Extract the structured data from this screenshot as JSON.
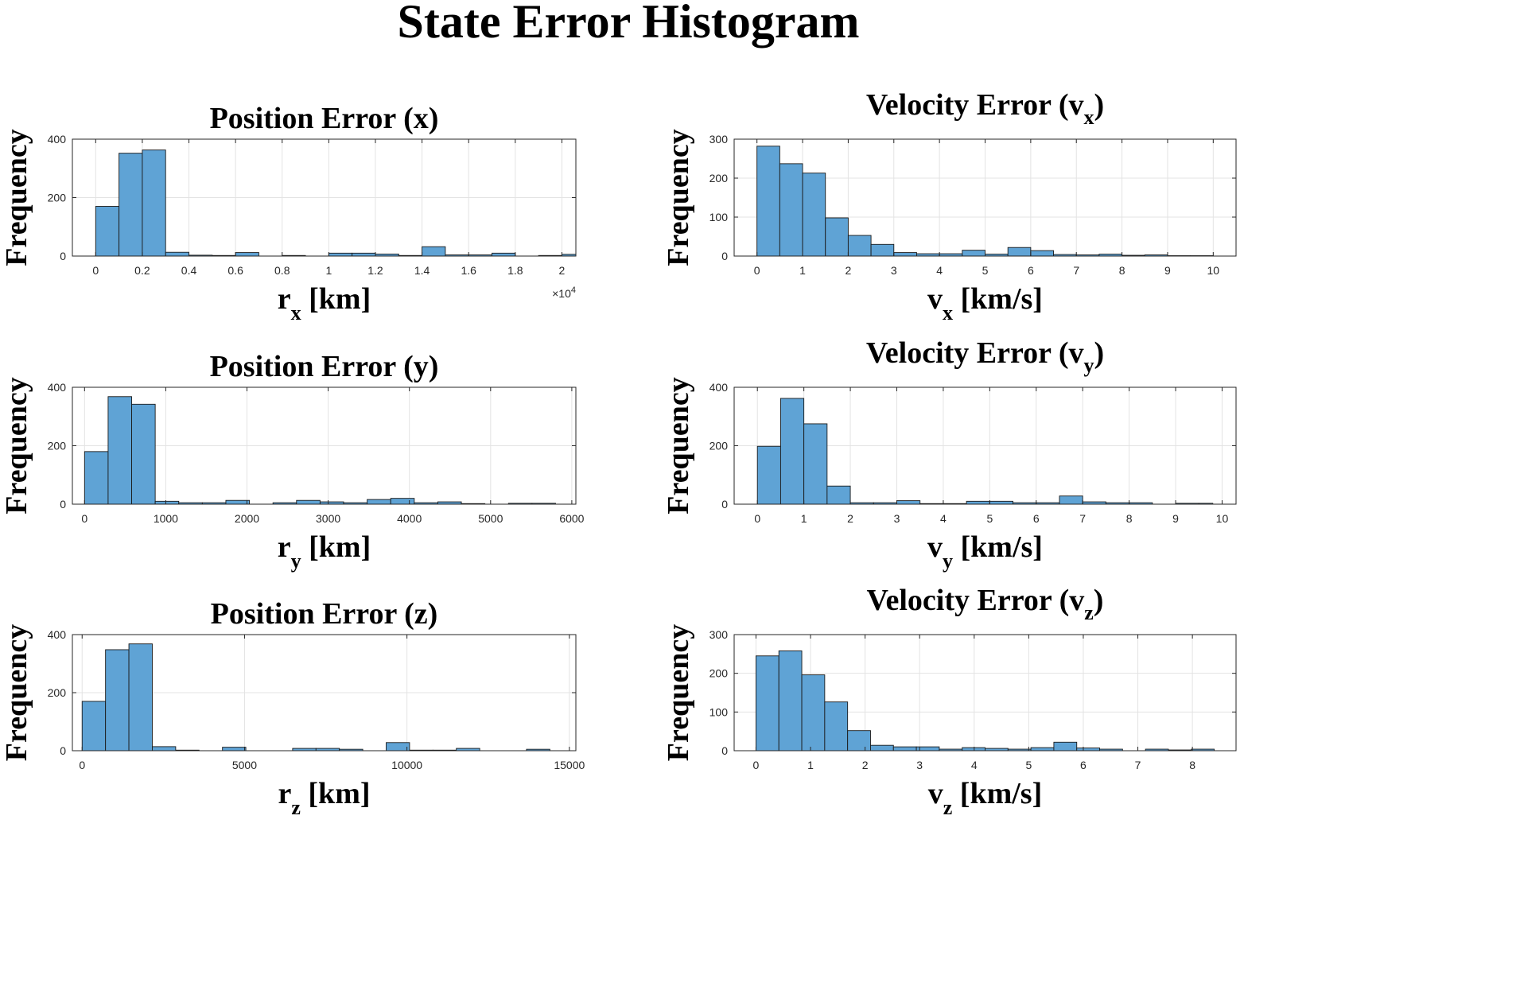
{
  "figure": {
    "title": "State Error Histogram"
  },
  "chart_data": [
    {
      "type": "bar",
      "title": "Position Error (x)",
      "xlabel": "r",
      "xlabel_sub": "x",
      "xlabel_unit": "[km]",
      "ylabel": "Frequency",
      "exponent_label": "×10",
      "exponent_power": "4",
      "xlim": [
        -0.1,
        2.06
      ],
      "ylim": [
        0,
        400
      ],
      "xticks": [
        0,
        0.2,
        0.4,
        0.6,
        0.8,
        1,
        1.2,
        1.4,
        1.6,
        1.8,
        2
      ],
      "xtick_labels": [
        "0",
        "0.2",
        "0.4",
        "0.6",
        "0.8",
        "1",
        "1.2",
        "1.4",
        "1.6",
        "1.8",
        "2"
      ],
      "yticks": [
        0,
        200,
        400
      ],
      "bin_edges": [
        0,
        0.1,
        0.2,
        0.3,
        0.4,
        0.5,
        0.6,
        0.7,
        0.8,
        0.9,
        1.0,
        1.1,
        1.2,
        1.3,
        1.4,
        1.5,
        1.6,
        1.7,
        1.8,
        1.9,
        2.0,
        2.06
      ],
      "values": [
        170,
        352,
        363,
        13,
        3,
        2,
        12,
        0,
        2,
        0,
        10,
        10,
        7,
        2,
        32,
        4,
        4,
        10,
        0,
        2,
        6
      ],
      "grid": true
    },
    {
      "type": "bar",
      "title": "Velocity Error (v",
      "title_sub": "x",
      "title_end": ")",
      "xlabel": "v",
      "xlabel_sub": "x",
      "xlabel_unit": "[km/s]",
      "ylabel": "Frequency",
      "xlim": [
        -0.5,
        10.5
      ],
      "ylim": [
        0,
        300
      ],
      "xticks": [
        0,
        1,
        2,
        3,
        4,
        5,
        6,
        7,
        8,
        9,
        10
      ],
      "xtick_labels": [
        "0",
        "1",
        "2",
        "3",
        "4",
        "5",
        "6",
        "7",
        "8",
        "9",
        "10"
      ],
      "yticks": [
        0,
        100,
        200,
        300
      ],
      "bin_edges": [
        0,
        0.5,
        1.0,
        1.5,
        2.0,
        2.5,
        3.0,
        3.5,
        4.0,
        4.5,
        5.0,
        5.5,
        6.0,
        6.5,
        7.0,
        7.5,
        8.0,
        8.5,
        9.0,
        9.5,
        10.0
      ],
      "values": [
        282,
        237,
        213,
        98,
        53,
        30,
        9,
        6,
        6,
        15,
        5,
        22,
        14,
        4,
        3,
        5,
        2,
        3,
        1,
        1
      ],
      "grid": true
    },
    {
      "type": "bar",
      "title": "Position Error (y)",
      "xlabel": "r",
      "xlabel_sub": "y",
      "xlabel_unit": "[km]",
      "ylabel": "Frequency",
      "xlim": [
        -150,
        6050
      ],
      "ylim": [
        0,
        400
      ],
      "xticks": [
        0,
        1000,
        2000,
        3000,
        4000,
        5000,
        6000
      ],
      "xtick_labels": [
        "0",
        "1000",
        "2000",
        "3000",
        "4000",
        "5000",
        "6000"
      ],
      "yticks": [
        0,
        200,
        400
      ],
      "bin_edges": [
        0,
        290,
        580,
        870,
        1160,
        1450,
        1740,
        2030,
        2320,
        2610,
        2900,
        3190,
        3480,
        3770,
        4060,
        4350,
        4640,
        4930,
        5220,
        5510,
        5800
      ],
      "values": [
        180,
        368,
        342,
        10,
        5,
        5,
        13,
        0,
        5,
        13,
        8,
        5,
        16,
        20,
        5,
        8,
        2,
        0,
        3,
        3
      ],
      "grid": true
    },
    {
      "type": "bar",
      "title": "Velocity Error (v",
      "title_sub": "y",
      "title_end": ")",
      "xlabel": "v",
      "xlabel_sub": "y",
      "xlabel_unit": "[km/s]",
      "ylabel": "Frequency",
      "xlim": [
        -0.5,
        10.3
      ],
      "ylim": [
        0,
        400
      ],
      "xticks": [
        0,
        1,
        2,
        3,
        4,
        5,
        6,
        7,
        8,
        9,
        10
      ],
      "xtick_labels": [
        "0",
        "1",
        "2",
        "3",
        "4",
        "5",
        "6",
        "7",
        "8",
        "9",
        "10"
      ],
      "yticks": [
        0,
        200,
        400
      ],
      "bin_edges": [
        0,
        0.5,
        1.0,
        1.5,
        2.0,
        2.5,
        3.0,
        3.5,
        4.0,
        4.5,
        5.0,
        5.5,
        6.0,
        6.5,
        7.0,
        7.5,
        8.0,
        8.5,
        9.0,
        9.5,
        9.8
      ],
      "values": [
        198,
        362,
        275,
        62,
        5,
        5,
        12,
        2,
        2,
        10,
        10,
        5,
        5,
        28,
        8,
        5,
        5,
        0,
        3,
        3
      ],
      "grid": true
    },
    {
      "type": "bar",
      "title": "Position Error (z)",
      "xlabel": "r",
      "xlabel_sub": "z",
      "xlabel_unit": "[km]",
      "ylabel": "Frequency",
      "xlim": [
        -300,
        15200
      ],
      "ylim": [
        0,
        400
      ],
      "xticks": [
        0,
        5000,
        10000,
        15000
      ],
      "xtick_labels": [
        "0",
        "5000",
        "10000",
        "15000"
      ],
      "yticks": [
        0,
        200,
        400
      ],
      "bin_edges": [
        0,
        720,
        1440,
        2160,
        2880,
        3600,
        4320,
        5040,
        5760,
        6480,
        7200,
        7920,
        8640,
        9360,
        10080,
        10800,
        11520,
        12240,
        12960,
        13680,
        14400
      ],
      "values": [
        170,
        348,
        368,
        14,
        2,
        0,
        12,
        0,
        0,
        8,
        8,
        5,
        0,
        28,
        2,
        2,
        8,
        0,
        0,
        5
      ],
      "grid": true
    },
    {
      "type": "bar",
      "title": "Velocity Error (v",
      "title_sub": "z",
      "title_end": ")",
      "xlabel": "v",
      "xlabel_sub": "z",
      "xlabel_unit": "[km/s]",
      "ylabel": "Frequency",
      "xlim": [
        -0.4,
        8.8
      ],
      "ylim": [
        0,
        300
      ],
      "xticks": [
        0,
        1,
        2,
        3,
        4,
        5,
        6,
        7,
        8
      ],
      "xtick_labels": [
        "0",
        "1",
        "2",
        "3",
        "4",
        "5",
        "6",
        "7",
        "8"
      ],
      "yticks": [
        0,
        100,
        200,
        300
      ],
      "bin_edges": [
        0,
        0.42,
        0.84,
        1.26,
        1.68,
        2.1,
        2.52,
        2.94,
        3.36,
        3.78,
        4.2,
        4.62,
        5.04,
        5.46,
        5.88,
        6.3,
        6.72,
        7.14,
        7.56,
        7.98,
        8.4
      ],
      "values": [
        245,
        258,
        196,
        126,
        52,
        14,
        10,
        10,
        4,
        8,
        6,
        4,
        8,
        22,
        7,
        4,
        0,
        4,
        2,
        4
      ],
      "grid": true
    }
  ],
  "colors": {
    "bar_fill": "#5fa3d5",
    "bar_edge": "#1a1a1a",
    "grid": "#e3e3e3",
    "axis": "#262626"
  }
}
